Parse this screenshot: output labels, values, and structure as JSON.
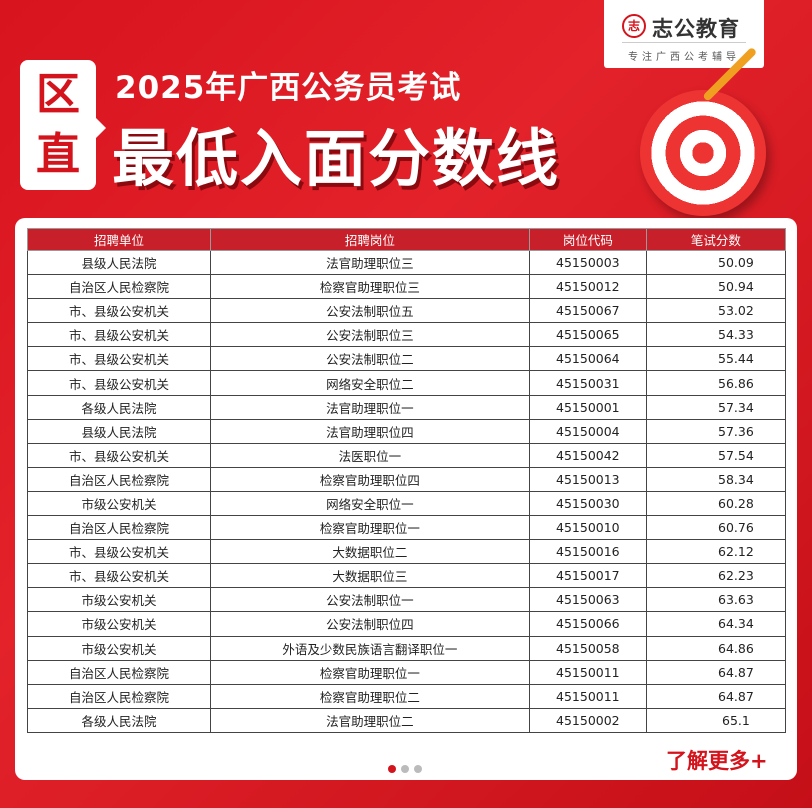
{
  "brand": {
    "seal": "志",
    "name": "志公教育",
    "slogan": "专注广西公考辅导"
  },
  "tag": "区直",
  "title_line1": "2025年广西公务员考试",
  "title_line2": "最低入面分数线",
  "accent_color": "#d4141c",
  "table": {
    "headers": [
      "招聘单位",
      "招聘岗位",
      "岗位代码",
      "笔试分数"
    ],
    "rows": [
      [
        "县级人民法院",
        "法官助理职位三",
        "45150003",
        "50.09"
      ],
      [
        "自治区人民检察院",
        "检察官助理职位三",
        "45150012",
        "50.94"
      ],
      [
        "市、县级公安机关",
        "公安法制职位五",
        "45150067",
        "53.02"
      ],
      [
        "市、县级公安机关",
        "公安法制职位三",
        "45150065",
        "54.33"
      ],
      [
        "市、县级公安机关",
        "公安法制职位二",
        "45150064",
        "55.44"
      ],
      [
        "市、县级公安机关",
        "网络安全职位二",
        "45150031",
        "56.86"
      ],
      [
        "各级人民法院",
        "法官助理职位一",
        "45150001",
        "57.34"
      ],
      [
        "县级人民法院",
        "法官助理职位四",
        "45150004",
        "57.36"
      ],
      [
        "市、县级公安机关",
        "法医职位一",
        "45150042",
        "57.54"
      ],
      [
        "自治区人民检察院",
        "检察官助理职位四",
        "45150013",
        "58.34"
      ],
      [
        "市级公安机关",
        "网络安全职位一",
        "45150030",
        "60.28"
      ],
      [
        "自治区人民检察院",
        "检察官助理职位一",
        "45150010",
        "60.76"
      ],
      [
        "市、县级公安机关",
        "大数据职位二",
        "45150016",
        "62.12"
      ],
      [
        "市、县级公安机关",
        "大数据职位三",
        "45150017",
        "62.23"
      ],
      [
        "市级公安机关",
        "公安法制职位一",
        "45150063",
        "63.63"
      ],
      [
        "市级公安机关",
        "公安法制职位四",
        "45150066",
        "64.34"
      ],
      [
        "市级公安机关",
        "外语及少数民族语言翻译职位一",
        "45150058",
        "64.86"
      ],
      [
        "自治区人民检察院",
        "检察官助理职位一",
        "45150011",
        "64.87"
      ],
      [
        "自治区人民检察院",
        "检察官助理职位二",
        "45150011",
        "64.87"
      ],
      [
        "各级人民法院",
        "法官助理职位二",
        "45150002",
        "65.1"
      ]
    ]
  },
  "pagination": {
    "current": 1,
    "total": 3
  },
  "more_link": "了解更多+"
}
